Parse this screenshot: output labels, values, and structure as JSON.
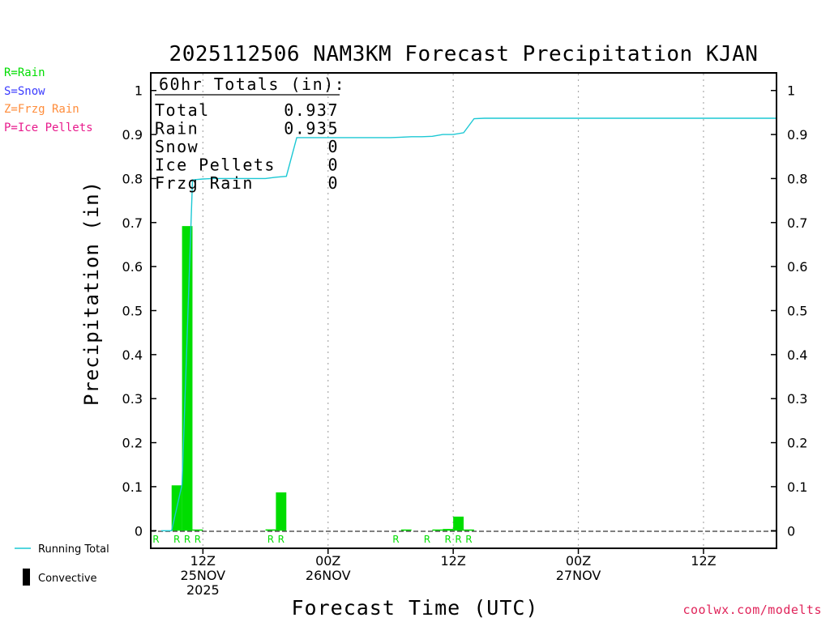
{
  "colors": {
    "rain": "#00dd00",
    "snow": "#3b3bff",
    "frzg_rain": "#ff8c3a",
    "ice_pellets": "#e81a8c",
    "running_total": "#1cc8d4",
    "convective": "#000000",
    "credit": "#e0245a"
  },
  "type_legend": {
    "rain": "R=Rain",
    "snow": "S=Snow",
    "frzg_rain": "Z=Frzg Rain",
    "ice_pellets": "P=Ice Pellets"
  },
  "series_legend": {
    "running_total": "Running Total",
    "convective": "Convective"
  },
  "totals": {
    "header": "60hr Totals (in):",
    "rows": [
      {
        "label": "Total",
        "value": "0.937"
      },
      {
        "label": "Rain",
        "value": "0.935"
      },
      {
        "label": "Snow",
        "value": "0"
      },
      {
        "label": "Ice Pellets",
        "value": "0"
      },
      {
        "label": "Frzg Rain",
        "value": "0"
      }
    ]
  },
  "credit": "coolwx.com/modelts",
  "chart_data": {
    "type": "bar",
    "title": "2025112506 NAM3KM Forecast Precipitation KJAN",
    "xlabel": "Forecast Time (UTC)",
    "ylabel": "Precipitation (in)",
    "ylim": [
      -0.04,
      1.04
    ],
    "xlim_hours": [
      1,
      61
    ],
    "yticks": [
      "0",
      "0.1",
      "0.2",
      "0.3",
      "0.4",
      "0.5",
      "0.6",
      "0.7",
      "0.8",
      "0.9",
      "1"
    ],
    "ytick_values": [
      0,
      0.1,
      0.2,
      0.3,
      0.4,
      0.5,
      0.6,
      0.7,
      0.8,
      0.9,
      1
    ],
    "xticks": [
      {
        "hour": 6,
        "lines": [
          "12Z",
          "25NOV",
          "2025"
        ]
      },
      {
        "hour": 18,
        "lines": [
          "00Z",
          "26NOV"
        ]
      },
      {
        "hour": 30,
        "lines": [
          "12Z"
        ]
      },
      {
        "hour": 42,
        "lines": [
          "00Z",
          "27NOV"
        ]
      },
      {
        "hour": 54,
        "lines": [
          "12Z"
        ]
      }
    ],
    "bars": [
      {
        "hour": 4,
        "value": 0.103,
        "ptype": "R"
      },
      {
        "hour": 5,
        "value": 0.692,
        "ptype": "R"
      },
      {
        "hour": 6,
        "value": 0.002,
        "ptype": "R"
      },
      {
        "hour": 13,
        "value": 0.003,
        "ptype": "R"
      },
      {
        "hour": 14,
        "value": 0.087,
        "ptype": "R"
      },
      {
        "hour": 26,
        "value": 0.001,
        "ptype": "R"
      },
      {
        "hour": 29,
        "value": 0.002,
        "ptype": "R"
      },
      {
        "hour": 30,
        "value": 0.004,
        "ptype": "R"
      },
      {
        "hour": 31,
        "value": 0.032,
        "ptype": "R"
      },
      {
        "hour": 32,
        "value": 0.001,
        "ptype": "R"
      }
    ],
    "ptype_markers": [
      {
        "hour": 2,
        "label": "R"
      },
      {
        "hour": 4,
        "label": "R"
      },
      {
        "hour": 5,
        "label": "R"
      },
      {
        "hour": 6,
        "label": "R"
      },
      {
        "hour": 13,
        "label": "R"
      },
      {
        "hour": 14,
        "label": "R"
      },
      {
        "hour": 25,
        "label": "R"
      },
      {
        "hour": 28,
        "label": "R"
      },
      {
        "hour": 30,
        "label": "R"
      },
      {
        "hour": 31,
        "label": "R"
      },
      {
        "hour": 32,
        "label": "R"
      }
    ],
    "running_total": {
      "name": "Running Total",
      "x": [
        2,
        3,
        4,
        5,
        6,
        7,
        8,
        9,
        10,
        11,
        12,
        13,
        14,
        15,
        16,
        17,
        18,
        19,
        20,
        21,
        22,
        23,
        24,
        25,
        26,
        27,
        28,
        29,
        30,
        31,
        32,
        33,
        34,
        35,
        36,
        40,
        44,
        48,
        52,
        56,
        61
      ],
      "values": [
        0,
        0,
        0.105,
        0.797,
        0.799,
        0.8,
        0.8,
        0.8,
        0.8,
        0.8,
        0.8,
        0.803,
        0.805,
        0.893,
        0.893,
        0.893,
        0.893,
        0.893,
        0.893,
        0.893,
        0.893,
        0.893,
        0.893,
        0.894,
        0.895,
        0.895,
        0.896,
        0.9,
        0.9,
        0.904,
        0.936,
        0.937,
        0.937,
        0.937,
        0.937,
        0.937,
        0.937,
        0.937,
        0.937,
        0.937,
        0.937
      ]
    }
  }
}
